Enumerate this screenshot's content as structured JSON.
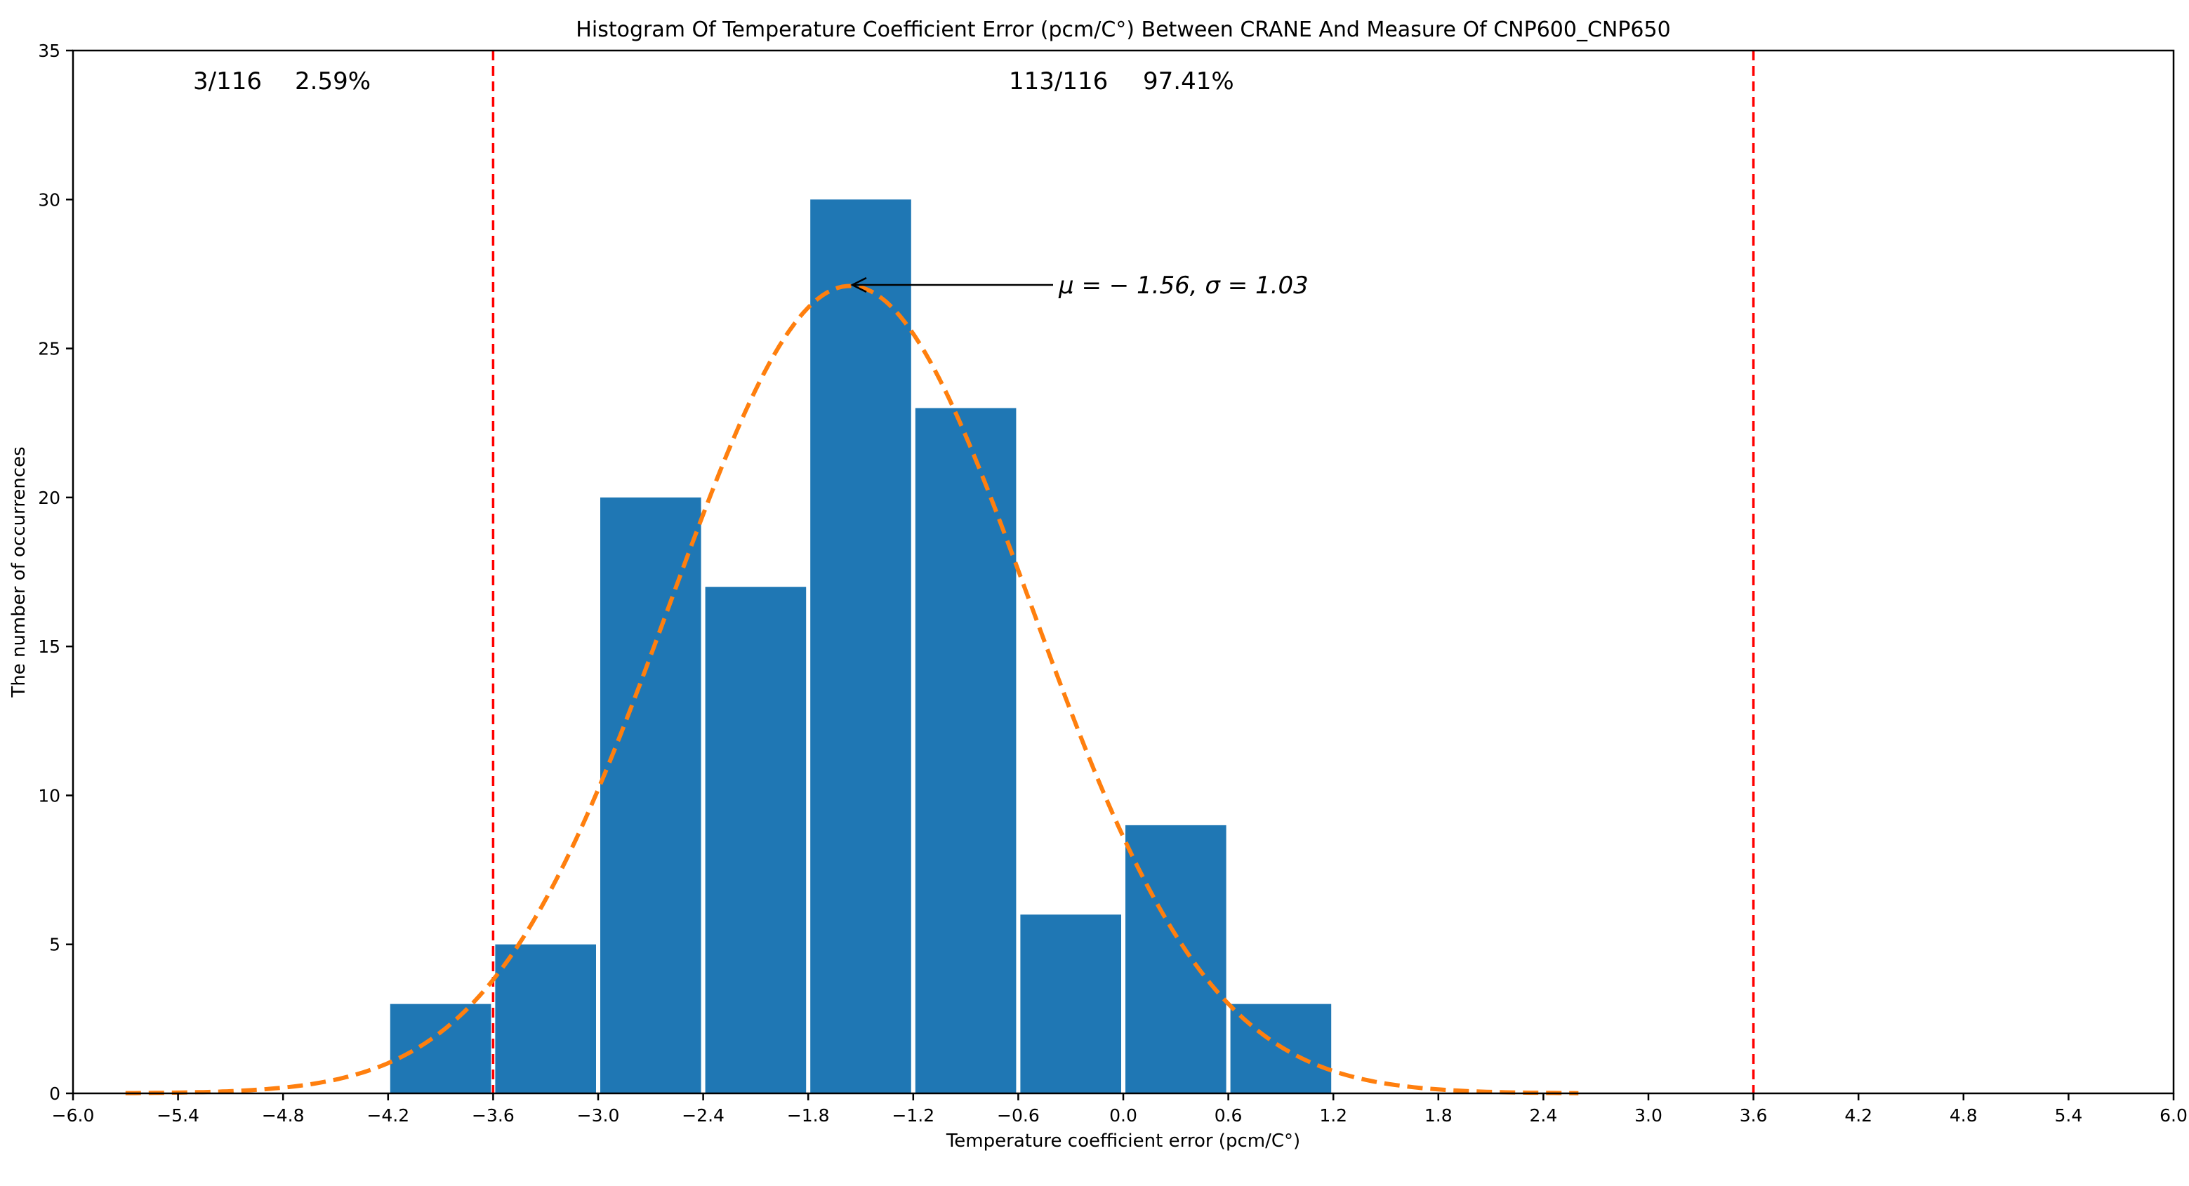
{
  "chart_data": {
    "type": "bar",
    "title": "Histogram Of Temperature Coefficient Error (pcm/C°) Between CRANE And Measure Of CNP600_CNP650",
    "xlabel": "Temperature coefficient error (pcm/C°)",
    "ylabel": "The number of occurrences",
    "xlim": [
      -6.0,
      6.0
    ],
    "ylim": [
      0,
      35
    ],
    "xticks": [
      "−6.0",
      "−5.4",
      "−4.8",
      "−4.2",
      "−3.6",
      "−3.0",
      "−2.4",
      "−1.8",
      "−1.2",
      "−0.6",
      "0.0",
      "0.6",
      "1.2",
      "1.8",
      "2.4",
      "3.0",
      "3.6",
      "4.2",
      "4.8",
      "5.4",
      "6.0"
    ],
    "yticks": [
      "0",
      "5",
      "10",
      "15",
      "20",
      "25",
      "30",
      "35"
    ],
    "grid": false,
    "bins": [
      {
        "x0": -4.2,
        "x1": -3.6,
        "count": 3
      },
      {
        "x0": -3.6,
        "x1": -3.0,
        "count": 5
      },
      {
        "x0": -3.0,
        "x1": -2.4,
        "count": 20
      },
      {
        "x0": -2.4,
        "x1": -1.8,
        "count": 17
      },
      {
        "x0": -1.8,
        "x1": -1.2,
        "count": 30
      },
      {
        "x0": -1.2,
        "x1": -0.6,
        "count": 23
      },
      {
        "x0": -0.6,
        "x1": 0.0,
        "count": 6
      },
      {
        "x0": 0.0,
        "x1": 0.6,
        "count": 9
      },
      {
        "x0": 0.6,
        "x1": 1.2,
        "count": 3
      }
    ],
    "bar_color": "#1f77b4",
    "fit_curve": {
      "style": "dashed",
      "color": "#ff7f0e",
      "mu": -1.56,
      "sigma": 1.03,
      "peak": 27.1,
      "x_range": [
        -5.7,
        2.6
      ]
    },
    "threshold_lines": {
      "values": [
        -3.6,
        3.6
      ],
      "color": "#ff0000",
      "style": "dashed"
    },
    "annotations": {
      "left_count": "3/116",
      "left_pct": "2.59%",
      "center_count": "113/116",
      "center_pct": "97.41%",
      "fit_label": "μ = − 1.56, σ = 1.03"
    }
  }
}
